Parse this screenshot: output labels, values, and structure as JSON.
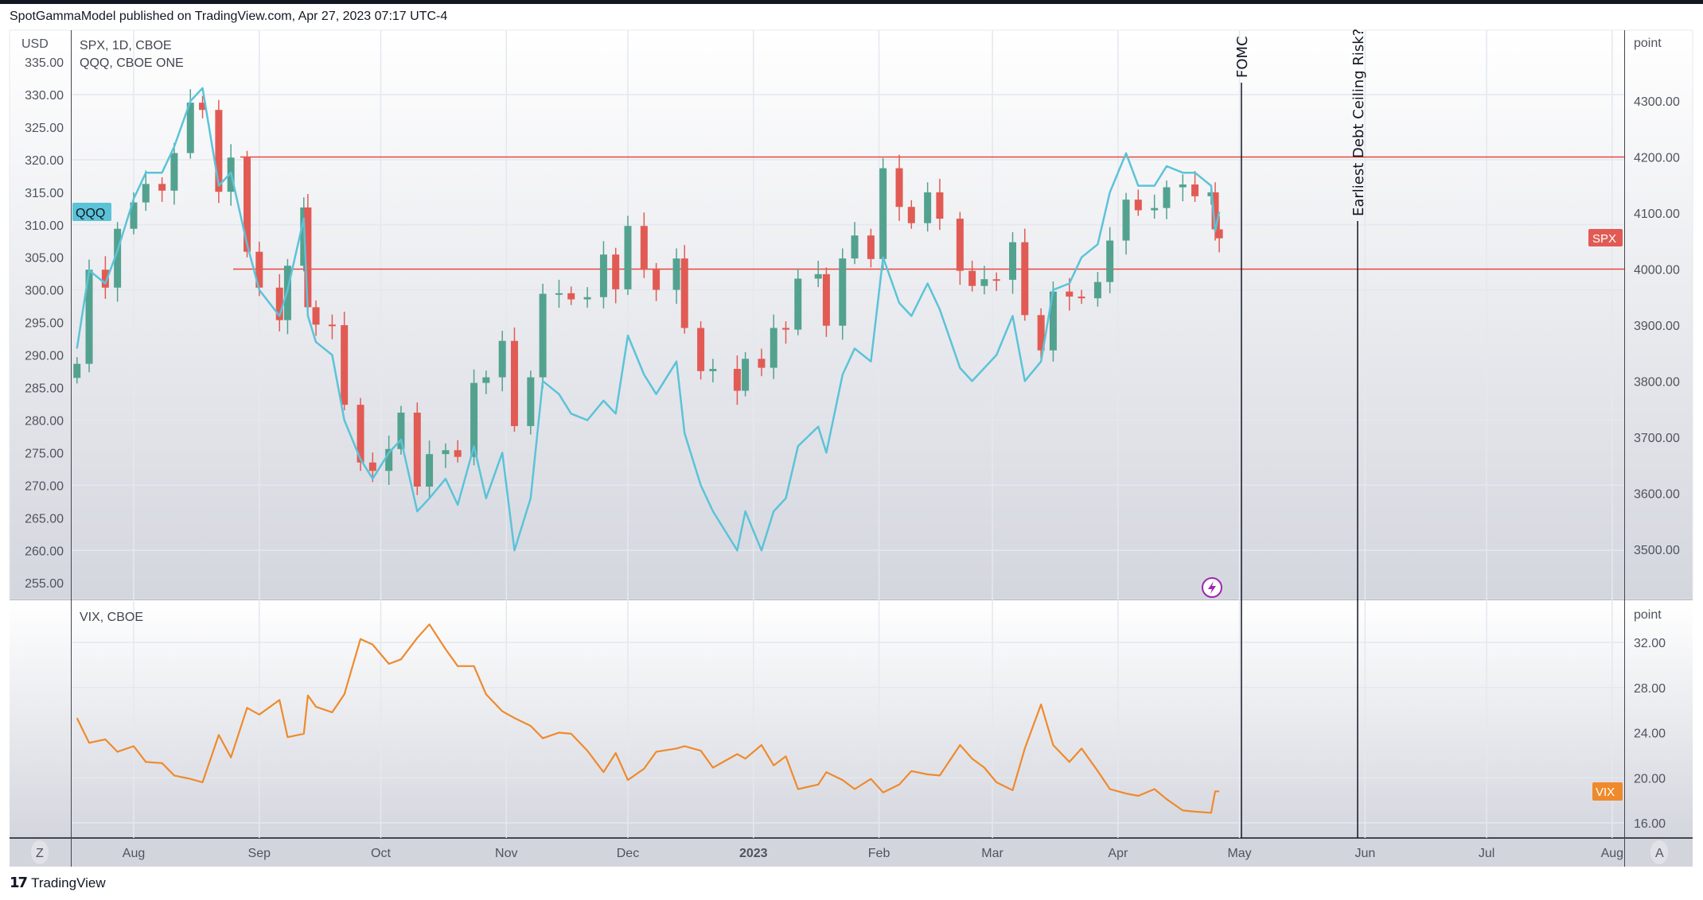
{
  "header": {
    "published": "SpotGammaModel published on TradingView.com, Apr 27, 2023 07:17 UTC-4"
  },
  "main_pane": {
    "legend_primary": "SPX, 1D, CBOE",
    "legend_secondary": "QQQ, CBOE ONE",
    "left_axis_unit": "USD",
    "right_axis_unit": "point",
    "qqq_tag": "QQQ",
    "spx_tag": "SPX",
    "event_fomc": "FOMC",
    "event_debt": "Earliest Debt Ceiling Risk?"
  },
  "vix_pane": {
    "legend": "VIX, CBOE",
    "right_axis_unit": "point",
    "vix_tag": "VIX"
  },
  "time_axis": {
    "labels": [
      "Aug",
      "Sep",
      "Oct",
      "Nov",
      "Dec",
      "2023",
      "Feb",
      "Mar",
      "Apr",
      "May",
      "Jun",
      "Jul",
      "Aug"
    ],
    "zoom_button": "Z",
    "auto_button": "A"
  },
  "footer": {
    "brand": "TradingView",
    "logo_mark": "17"
  },
  "colors": {
    "up": "#53a290",
    "down": "#e15b54",
    "qqq": "#5bc3d8",
    "vix": "#ef8a2c",
    "level": "#e5483f",
    "accent_purple": "#9c27b0"
  },
  "chart_data": [
    {
      "type": "candlestick+line",
      "title": "SPX, 1D, CBOE",
      "left_axis": {
        "label": "USD",
        "ticks": [
          "335.00",
          "330.00",
          "325.00",
          "320.00",
          "315.00",
          "310.00",
          "305.00",
          "300.00",
          "295.00",
          "290.00",
          "285.00",
          "280.00",
          "275.00",
          "270.00",
          "265.00",
          "260.00",
          "255.00"
        ],
        "range": [
          253,
          337
        ]
      },
      "right_axis": {
        "label": "point",
        "ticks": [
          "4300.00",
          "4200.00",
          "4100.00",
          "4000.00",
          "3900.00",
          "3800.00",
          "3700.00",
          "3600.00",
          "3500.00"
        ],
        "range": [
          3420,
          4360
        ]
      },
      "horizontal_levels": [
        4200,
        4000
      ],
      "event_lines": [
        {
          "date": "2023-05-03",
          "label": "FOMC"
        },
        {
          "date": "2023-06-01",
          "label": "Earliest Debt Ceiling Risk?"
        }
      ],
      "x": [
        "2022-07-18",
        "2022-07-21",
        "2022-07-25",
        "2022-07-28",
        "2022-08-01",
        "2022-08-04",
        "2022-08-08",
        "2022-08-11",
        "2022-08-15",
        "2022-08-18",
        "2022-08-22",
        "2022-08-25",
        "2022-08-29",
        "2022-09-01",
        "2022-09-06",
        "2022-09-08",
        "2022-09-12",
        "2022-09-13",
        "2022-09-15",
        "2022-09-19",
        "2022-09-22",
        "2022-09-26",
        "2022-09-29",
        "2022-10-03",
        "2022-10-06",
        "2022-10-10",
        "2022-10-13",
        "2022-10-17",
        "2022-10-20",
        "2022-10-24",
        "2022-10-27",
        "2022-10-31",
        "2022-11-03",
        "2022-11-07",
        "2022-11-10",
        "2022-11-14",
        "2022-11-17",
        "2022-11-21",
        "2022-11-25",
        "2022-11-28",
        "2022-12-01",
        "2022-12-05",
        "2022-12-08",
        "2022-12-13",
        "2022-12-15",
        "2022-12-19",
        "2022-12-22",
        "2022-12-28",
        "2022-12-30",
        "2023-01-03",
        "2023-01-06",
        "2023-01-09",
        "2023-01-12",
        "2023-01-17",
        "2023-01-19",
        "2023-01-23",
        "2023-01-26",
        "2023-01-30",
        "2023-02-02",
        "2023-02-06",
        "2023-02-09",
        "2023-02-13",
        "2023-02-16",
        "2023-02-21",
        "2023-02-24",
        "2023-02-27",
        "2023-03-02",
        "2023-03-06",
        "2023-03-09",
        "2023-03-13",
        "2023-03-16",
        "2023-03-20",
        "2023-03-23",
        "2023-03-27",
        "2023-03-30",
        "2023-04-03",
        "2023-04-06",
        "2023-04-10",
        "2023-04-13",
        "2023-04-17",
        "2023-04-20",
        "2023-04-24",
        "2023-04-25",
        "2023-04-26"
      ],
      "series": [
        {
          "name": "SPX",
          "axis": "right",
          "style": "candles",
          "values": [
            3831,
            3999,
            3967,
            4072,
            4119,
            4152,
            4140,
            4207,
            4297,
            4284,
            4138,
            4199,
            4031,
            3967,
            3909,
            4006,
            4110,
            3932,
            3901,
            3900,
            3758,
            3655,
            3640,
            3679,
            3744,
            3612,
            3670,
            3677,
            3665,
            3797,
            3807,
            3872,
            3720,
            3807,
            3956,
            3957,
            3946,
            3950,
            4026,
            3964,
            4077,
            3999,
            3963,
            4019,
            3895,
            3818,
            3822,
            3783,
            3840,
            3824,
            3895,
            3892,
            3983,
            3991,
            3899,
            4019,
            4060,
            4018,
            4180,
            4111,
            4082,
            4137,
            4090,
            3997,
            3970,
            3982,
            3981,
            4048,
            3918,
            3855,
            3960,
            3951,
            3948,
            3977,
            4051,
            4124,
            4105,
            4109,
            4146,
            4151,
            4130,
            4137,
            4071,
            4055
          ]
        },
        {
          "name": "QQQ",
          "axis": "left",
          "style": "line",
          "values": [
            291,
            303,
            301,
            306,
            314,
            318,
            318,
            322,
            329,
            331,
            316,
            318,
            307,
            300,
            296,
            300,
            311,
            296,
            292,
            290,
            280,
            274,
            271,
            275,
            277,
            266,
            268,
            271,
            267,
            276,
            268,
            275,
            260,
            268,
            286,
            284,
            281,
            280,
            283,
            281,
            293,
            287,
            284,
            289,
            278,
            270,
            266,
            260,
            266,
            260,
            266,
            268,
            276,
            279,
            275,
            287,
            291,
            289,
            305,
            298,
            296,
            301,
            297,
            288,
            286,
            288,
            290,
            296,
            286,
            289,
            300,
            301,
            305,
            307,
            315,
            321,
            316,
            316,
            319,
            318,
            318,
            316,
            309,
            312
          ]
        }
      ]
    },
    {
      "type": "line",
      "title": "VIX, CBOE",
      "right_axis": {
        "label": "point",
        "ticks": [
          "32.00",
          "28.00",
          "24.00",
          "20.00",
          "16.00"
        ],
        "range": [
          14.8,
          34.8
        ]
      },
      "series": [
        {
          "name": "VIX",
          "values": [
            25.3,
            23.1,
            23.4,
            22.3,
            22.8,
            21.4,
            21.3,
            20.2,
            19.9,
            19.6,
            23.8,
            21.8,
            26.2,
            25.6,
            26.9,
            23.6,
            23.9,
            27.3,
            26.3,
            25.8,
            27.4,
            32.3,
            31.8,
            30.1,
            30.5,
            32.4,
            33.6,
            31.4,
            29.9,
            29.9,
            27.4,
            25.9,
            25.3,
            24.6,
            23.5,
            24.0,
            23.9,
            22.4,
            20.5,
            22.2,
            19.8,
            20.8,
            22.3,
            22.6,
            22.8,
            22.4,
            20.9,
            22.1,
            21.7,
            22.9,
            21.1,
            21.9,
            19.0,
            19.4,
            20.5,
            19.8,
            19.0,
            19.9,
            18.7,
            19.4,
            20.6,
            20.3,
            20.2,
            22.9,
            21.7,
            20.9,
            19.6,
            18.9,
            22.6,
            26.5,
            22.9,
            21.4,
            22.6,
            20.6,
            19.0,
            18.6,
            18.4,
            19.0,
            18.1,
            17.1,
            17.0,
            16.9,
            18.8,
            18.8
          ]
        }
      ]
    }
  ]
}
